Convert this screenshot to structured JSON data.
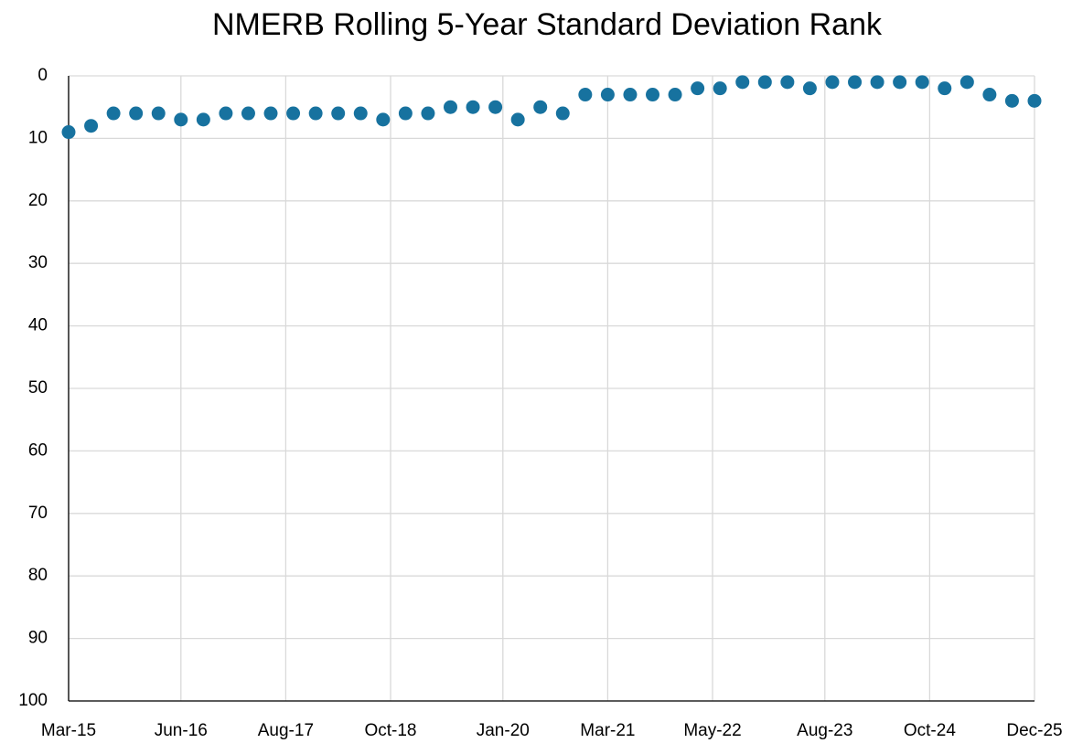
{
  "chart_data": {
    "type": "scatter",
    "title": "NMERB Rolling 5-Year Standard Deviation Rank",
    "x": [
      "2015-03",
      "2015-06",
      "2015-09",
      "2015-12",
      "2016-03",
      "2016-06",
      "2016-09",
      "2016-12",
      "2017-03",
      "2017-06",
      "2017-09",
      "2017-12",
      "2018-03",
      "2018-06",
      "2018-09",
      "2018-12",
      "2019-03",
      "2019-06",
      "2019-09",
      "2019-12",
      "2020-03",
      "2020-06",
      "2020-09",
      "2020-12",
      "2021-03",
      "2021-06",
      "2021-09",
      "2021-12",
      "2022-03",
      "2022-06",
      "2022-09",
      "2022-12",
      "2023-03",
      "2023-06",
      "2023-09",
      "2023-12",
      "2024-03",
      "2024-06",
      "2024-09",
      "2024-12",
      "2025-03",
      "2025-06",
      "2025-09",
      "2025-12"
    ],
    "series": [
      {
        "color": "#17729f",
        "values": [
          9,
          8,
          6,
          6,
          6,
          7,
          7,
          6,
          6,
          6,
          6,
          6,
          6,
          6,
          7,
          6,
          6,
          5,
          5,
          5,
          7,
          5,
          6,
          3,
          3,
          3,
          3,
          3,
          2,
          2,
          1,
          1,
          1,
          2,
          1,
          1,
          1,
          1,
          1,
          2,
          1,
          3,
          4,
          4
        ]
      }
    ],
    "xlim": [
      "2015-03",
      "2025-12"
    ],
    "xticks": [
      {
        "value": "2015-03",
        "label": "Mar-15"
      },
      {
        "value": "2016-06",
        "label": "Jun-16"
      },
      {
        "value": "2017-08",
        "label": "Aug-17"
      },
      {
        "value": "2018-10",
        "label": "Oct-18"
      },
      {
        "value": "2020-01",
        "label": "Jan-20"
      },
      {
        "value": "2021-03",
        "label": "Mar-21"
      },
      {
        "value": "2022-05",
        "label": "May-22"
      },
      {
        "value": "2023-08",
        "label": "Aug-23"
      },
      {
        "value": "2024-10",
        "label": "Oct-24"
      },
      {
        "value": "2025-12",
        "label": "Dec-25"
      }
    ],
    "ylim": [
      0,
      100
    ],
    "yticks": [
      0,
      10,
      20,
      30,
      40,
      50,
      60,
      70,
      80,
      90,
      100
    ],
    "y_inverted": true,
    "grid": true
  }
}
